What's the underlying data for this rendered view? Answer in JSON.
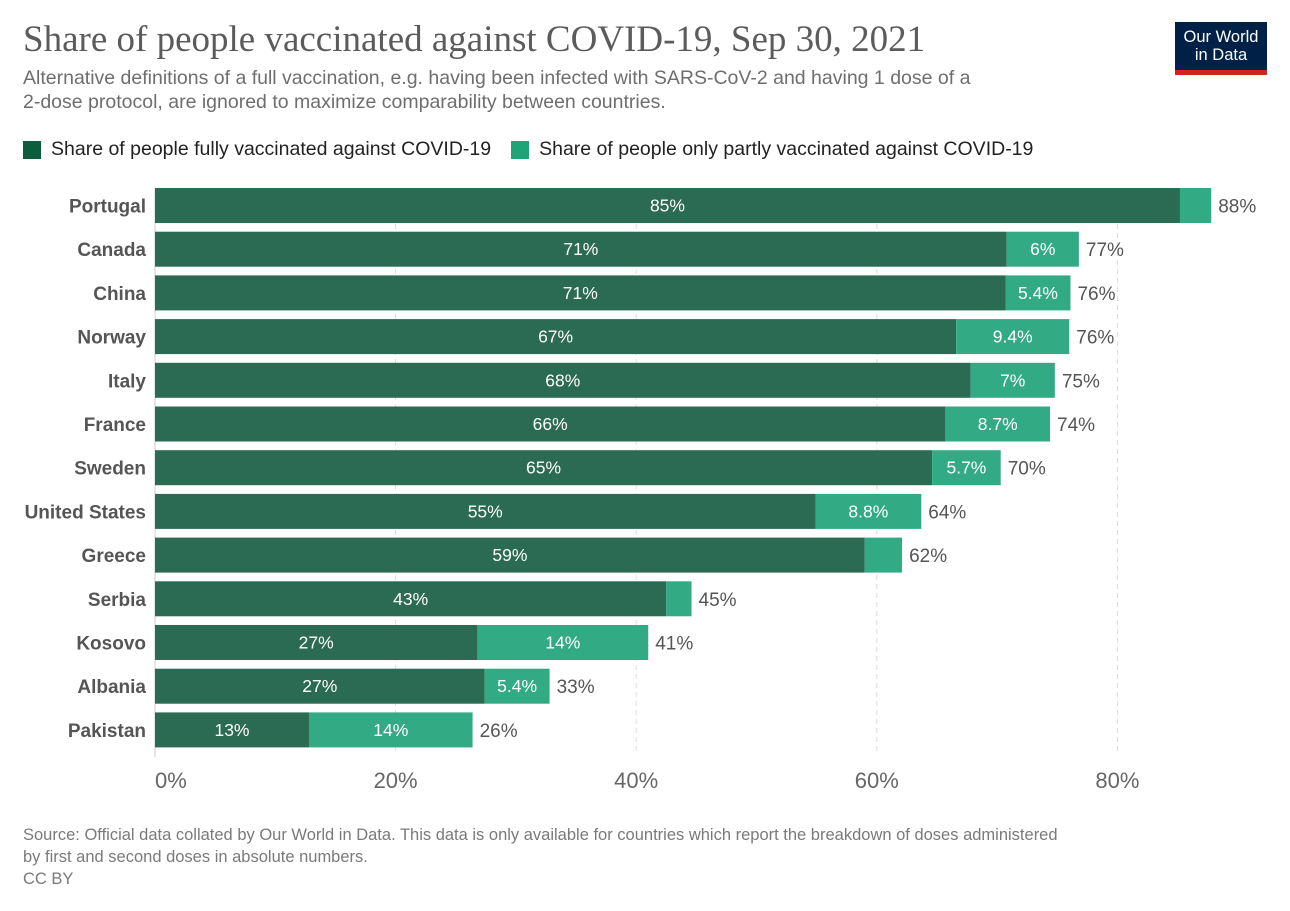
{
  "header": {
    "title": "Share of people vaccinated against COVID-19, Sep 30, 2021",
    "subtitle_line1": "Alternative definitions of a full vaccination, e.g. having been infected with SARS-CoV-2 and having 1 dose of a",
    "subtitle_line2": "2-dose protocol, are ignored to maximize comparability between countries.",
    "logo_line1": "Our World",
    "logo_line2": "in Data"
  },
  "colors": {
    "full": "#2b6a53",
    "partial": "#32ab84",
    "legend_full": "#0c5c3e",
    "legend_partial": "#1da477",
    "grid": "#dddddd",
    "logo_bg": "#002147",
    "logo_bar": "#ce261e"
  },
  "footer": {
    "source_line1": "Source: Official data collated by Our World in Data. This data is only available for countries which report the breakdown of doses administered",
    "source_line2": "by first and second doses in absolute numbers.",
    "license": "CC BY"
  },
  "chart_data": {
    "type": "bar",
    "orientation": "horizontal",
    "stacked": true,
    "title": "Share of people vaccinated against COVID-19, Sep 30, 2021",
    "xlabel": "",
    "ylabel": "",
    "xlim": [
      0,
      88
    ],
    "x_ticks": [
      0,
      20,
      40,
      60,
      80
    ],
    "x_tick_labels": [
      "0%",
      "20%",
      "40%",
      "60%",
      "80%"
    ],
    "grid": "vertical dashed",
    "legend_position": "top",
    "categories": [
      "Portugal",
      "Canada",
      "China",
      "Norway",
      "Italy",
      "France",
      "Sweden",
      "United States",
      "Greece",
      "Serbia",
      "Kosovo",
      "Albania",
      "Pakistan"
    ],
    "series": [
      {
        "name": "Share of people fully vaccinated against COVID-19",
        "values": [
          85.2,
          70.8,
          70.7,
          66.6,
          67.8,
          65.7,
          64.6,
          54.9,
          59.0,
          42.5,
          26.8,
          27.4,
          12.8
        ],
        "labels": [
          "85%",
          "71%",
          "71%",
          "67%",
          "68%",
          "66%",
          "65%",
          "55%",
          "59%",
          "43%",
          "27%",
          "27%",
          "13%"
        ]
      },
      {
        "name": "Share of people only partly vaccinated against COVID-19",
        "values": [
          2.6,
          6.0,
          5.4,
          9.4,
          7.0,
          8.7,
          5.7,
          8.8,
          3.1,
          2.1,
          14.2,
          5.4,
          13.6
        ],
        "labels": [
          "",
          "6%",
          "5.4%",
          "9.4%",
          "7%",
          "8.7%",
          "5.7%",
          "8.8%",
          "",
          "",
          "14%",
          "5.4%",
          "14%"
        ]
      }
    ],
    "totals": [
      "88%",
      "77%",
      "76%",
      "76%",
      "75%",
      "74%",
      "70%",
      "64%",
      "62%",
      "45%",
      "41%",
      "33%",
      "26%"
    ]
  }
}
